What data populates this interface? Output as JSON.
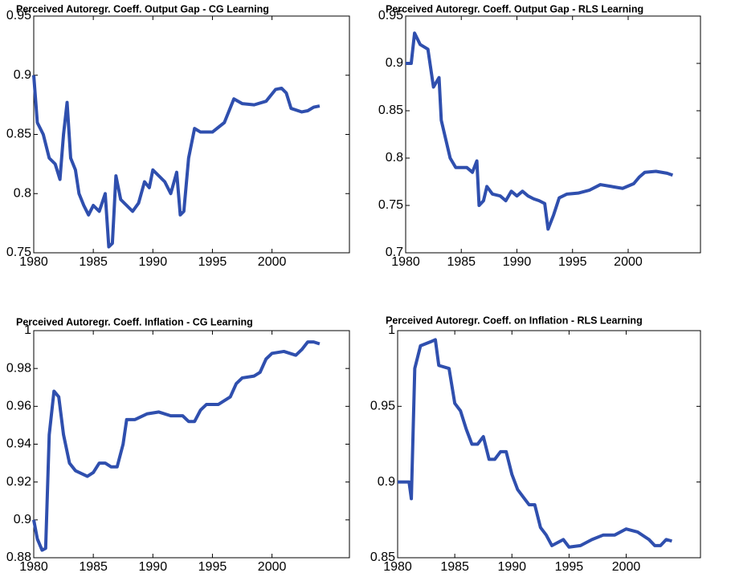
{
  "chart_data": [
    {
      "type": "line",
      "title": "Perceived Autoregr. Coeff. Output Gap - CG Learning",
      "color": "#2f4fae",
      "xlim": [
        1980,
        2006.5
      ],
      "xticks": [
        1980,
        1985,
        1990,
        1995,
        2000
      ],
      "ylim": [
        0.75,
        0.95
      ],
      "yticks": [
        0.75,
        0.8,
        0.85,
        0.9,
        0.95
      ],
      "x": [
        1980,
        1980.3,
        1980.8,
        1981.3,
        1981.8,
        1982.2,
        1982.5,
        1982.8,
        1983.1,
        1983.5,
        1983.8,
        1984.2,
        1984.6,
        1985,
        1985.5,
        1986,
        1986.3,
        1986.6,
        1986.9,
        1987.3,
        1987.8,
        1988.3,
        1988.8,
        1989.3,
        1989.7,
        1990,
        1990.5,
        1991,
        1991.5,
        1992,
        1992.3,
        1992.6,
        1993,
        1993.5,
        1994,
        1995,
        1996,
        1996.8,
        1997.5,
        1998.5,
        1999.5,
        2000.3,
        2000.8,
        2001.2,
        2001.6,
        2002.5,
        2003,
        2003.5,
        2004
      ],
      "values": [
        0.9,
        0.86,
        0.85,
        0.83,
        0.825,
        0.812,
        0.85,
        0.877,
        0.83,
        0.82,
        0.8,
        0.79,
        0.782,
        0.79,
        0.785,
        0.8,
        0.755,
        0.758,
        0.815,
        0.795,
        0.79,
        0.785,
        0.792,
        0.81,
        0.805,
        0.82,
        0.815,
        0.81,
        0.8,
        0.818,
        0.782,
        0.785,
        0.83,
        0.855,
        0.852,
        0.852,
        0.86,
        0.88,
        0.876,
        0.875,
        0.878,
        0.888,
        0.889,
        0.885,
        0.872,
        0.869,
        0.87,
        0.873,
        0.874
      ]
    },
    {
      "type": "line",
      "title": "Perceived Autoregr. Coeff. Output Gap - RLS Learning",
      "color": "#2f4fae",
      "xlim": [
        1980,
        2006.5
      ],
      "xticks": [
        1980,
        1985,
        1990,
        1995,
        2000
      ],
      "ylim": [
        0.7,
        0.95
      ],
      "yticks": [
        0.7,
        0.75,
        0.8,
        0.85,
        0.9,
        0.95
      ],
      "x": [
        1980,
        1980.5,
        1980.8,
        1981.3,
        1982,
        1982.5,
        1983,
        1983.2,
        1983.6,
        1984,
        1984.5,
        1985,
        1985.5,
        1986,
        1986.4,
        1986.6,
        1987,
        1987.3,
        1987.8,
        1988.5,
        1989,
        1989.5,
        1990,
        1990.5,
        1991,
        1991.5,
        1992,
        1992.5,
        1992.8,
        1993.3,
        1993.8,
        1994.5,
        1995.5,
        1996.5,
        1997.5,
        1998.5,
        1999.5,
        2000.5,
        2001,
        2001.5,
        2002.5,
        2003.5,
        2004
      ],
      "values": [
        0.9,
        0.9,
        0.932,
        0.92,
        0.915,
        0.875,
        0.885,
        0.84,
        0.82,
        0.8,
        0.79,
        0.79,
        0.79,
        0.785,
        0.797,
        0.75,
        0.755,
        0.77,
        0.762,
        0.76,
        0.755,
        0.765,
        0.76,
        0.765,
        0.76,
        0.757,
        0.755,
        0.752,
        0.725,
        0.74,
        0.758,
        0.762,
        0.763,
        0.766,
        0.772,
        0.77,
        0.768,
        0.773,
        0.78,
        0.785,
        0.786,
        0.784,
        0.782
      ]
    },
    {
      "type": "line",
      "title": "Perceived Autoregr. Coeff. Inflation - CG Learning",
      "color": "#2f4fae",
      "xlim": [
        1980,
        2006.5
      ],
      "xticks": [
        1980,
        1985,
        1990,
        1995,
        2000
      ],
      "ylim": [
        0.88,
        1
      ],
      "yticks": [
        0.88,
        0.9,
        0.92,
        0.94,
        0.96,
        0.98,
        1
      ],
      "x": [
        1980,
        1980.3,
        1980.7,
        1981,
        1981.3,
        1981.7,
        1982.1,
        1982.5,
        1983,
        1983.5,
        1984.5,
        1985,
        1985.5,
        1986,
        1986.5,
        1987,
        1987.5,
        1987.8,
        1988.5,
        1989.5,
        1990.5,
        1991.5,
        1992.5,
        1993,
        1993.5,
        1994,
        1994.5,
        1995.5,
        1996.5,
        1997,
        1997.5,
        1998.5,
        1999,
        1999.5,
        2000,
        2001,
        2002,
        2002.5,
        2003,
        2003.5,
        2004
      ],
      "values": [
        0.9,
        0.89,
        0.884,
        0.885,
        0.945,
        0.968,
        0.965,
        0.945,
        0.93,
        0.926,
        0.923,
        0.925,
        0.93,
        0.93,
        0.928,
        0.928,
        0.94,
        0.953,
        0.953,
        0.956,
        0.957,
        0.955,
        0.955,
        0.952,
        0.952,
        0.958,
        0.961,
        0.961,
        0.965,
        0.972,
        0.975,
        0.976,
        0.978,
        0.985,
        0.988,
        0.989,
        0.987,
        0.99,
        0.994,
        0.994,
        0.993
      ]
    },
    {
      "type": "line",
      "title": "Perceived Autoregr. Coeff. on Inflation - RLS Learning",
      "color": "#2f4fae",
      "xlim": [
        1980,
        2006.5
      ],
      "xticks": [
        1980,
        1985,
        1990,
        1995,
        2000
      ],
      "ylim": [
        0.85,
        1
      ],
      "yticks": [
        0.85,
        0.9,
        0.95,
        1
      ],
      "x": [
        1980,
        1981,
        1981.2,
        1981.5,
        1982,
        1983,
        1983.3,
        1983.6,
        1984.5,
        1985,
        1985.5,
        1986,
        1986.5,
        1987,
        1987.5,
        1988,
        1988.5,
        1989,
        1989.5,
        1990,
        1990.5,
        1991,
        1991.5,
        1992,
        1992.5,
        1993,
        1993.5,
        1994,
        1994.5,
        1995,
        1996,
        1997,
        1998,
        1999,
        2000,
        2001,
        2002,
        2002.5,
        2003,
        2003.5,
        2004
      ],
      "values": [
        0.9,
        0.9,
        0.889,
        0.975,
        0.99,
        0.993,
        0.994,
        0.977,
        0.975,
        0.952,
        0.947,
        0.935,
        0.925,
        0.925,
        0.93,
        0.915,
        0.915,
        0.92,
        0.92,
        0.905,
        0.895,
        0.89,
        0.885,
        0.885,
        0.87,
        0.865,
        0.858,
        0.86,
        0.862,
        0.857,
        0.858,
        0.862,
        0.865,
        0.865,
        0.869,
        0.867,
        0.862,
        0.858,
        0.858,
        0.862,
        0.861
      ]
    }
  ]
}
